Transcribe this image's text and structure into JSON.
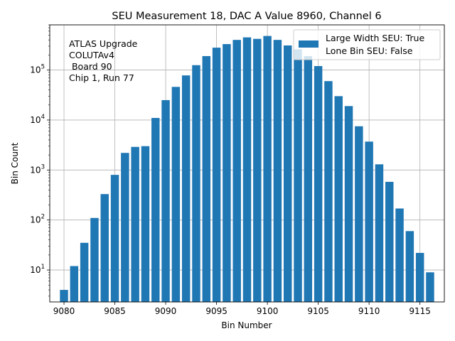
{
  "chart_data": {
    "type": "bar",
    "title": "SEU Measurement 18, DAC A Value 8960, Channel 6",
    "xlabel": "Bin Number",
    "ylabel": "Bin Count",
    "yscale": "log",
    "xlim": [
      9078.6,
      9117.4
    ],
    "ylim": [
      2.3,
      800000
    ],
    "grid": true,
    "bar_color": "#1f77b4",
    "x_ticks": [
      {
        "value": 9080,
        "label": "9080"
      },
      {
        "value": 9085,
        "label": "9085"
      },
      {
        "value": 9090,
        "label": "9090"
      },
      {
        "value": 9095,
        "label": "9095"
      },
      {
        "value": 9100,
        "label": "9100"
      },
      {
        "value": 9105,
        "label": "9105"
      },
      {
        "value": 9110,
        "label": "9110"
      },
      {
        "value": 9115,
        "label": "9115"
      }
    ],
    "y_ticks": [
      {
        "value": 10,
        "base": "10",
        "exp": "1"
      },
      {
        "value": 100,
        "base": "10",
        "exp": "2"
      },
      {
        "value": 1000,
        "base": "10",
        "exp": "3"
      },
      {
        "value": 10000,
        "base": "10",
        "exp": "4"
      },
      {
        "value": 100000,
        "base": "10",
        "exp": "5"
      }
    ],
    "series": [
      {
        "name": "Large Width SEU: True",
        "x": [
          9080,
          9081,
          9082,
          9083,
          9084,
          9085,
          9086,
          9087,
          9088,
          9089,
          9090,
          9091,
          9092,
          9093,
          9094,
          9095,
          9096,
          9097,
          9098,
          9099,
          9100,
          9101,
          9102,
          9103,
          9104,
          9105,
          9106,
          9107,
          9108,
          9109,
          9110,
          9111,
          9112,
          9113,
          9114,
          9115,
          9116
        ],
        "values": [
          4,
          12,
          35,
          110,
          330,
          800,
          2200,
          2900,
          3000,
          11000,
          25000,
          46000,
          78000,
          125000,
          190000,
          280000,
          330000,
          400000,
          450000,
          420000,
          480000,
          400000,
          310000,
          260000,
          190000,
          120000,
          60000,
          30000,
          19000,
          7500,
          3700,
          1300,
          580,
          170,
          60,
          22,
          9
        ]
      }
    ],
    "legend": {
      "position": "top-right",
      "entries": [
        "Large Width SEU: True",
        "Lone Bin SEU: False"
      ]
    },
    "annotation": [
      "ATLAS Upgrade",
      "COLUTAv4",
      " Board 90",
      "Chip 1, Run 77"
    ]
  }
}
